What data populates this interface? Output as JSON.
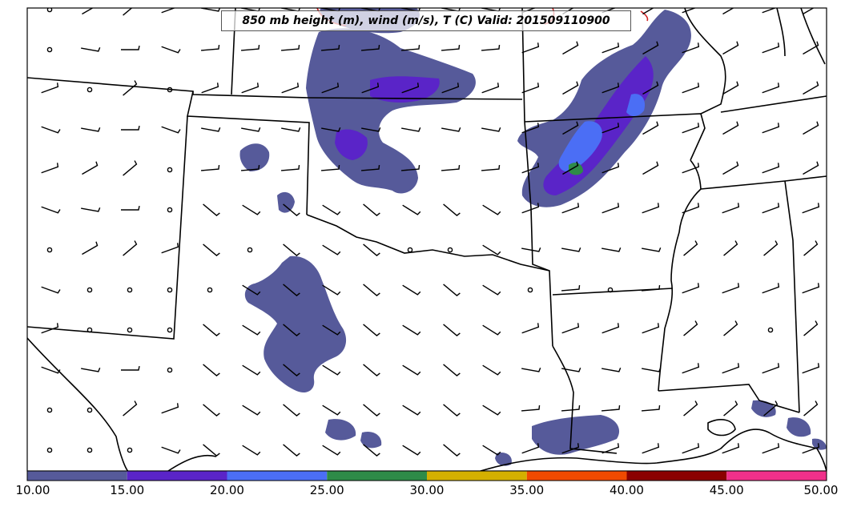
{
  "map": {
    "title": "850 mb height (m), wind (m/s), T (C) Valid: 201509110900"
  },
  "colorbar": {
    "segments": [
      {
        "from": 10,
        "to": 15,
        "color": "#565a9a"
      },
      {
        "from": 15,
        "to": 20,
        "color": "#5a24c8"
      },
      {
        "from": 20,
        "to": 25,
        "color": "#4b6ef5"
      },
      {
        "from": 25,
        "to": 30,
        "color": "#2e8b48"
      },
      {
        "from": 30,
        "to": 35,
        "color": "#d4b000"
      },
      {
        "from": 35,
        "to": 40,
        "color": "#f04a00"
      },
      {
        "from": 40,
        "to": 45,
        "color": "#8b0000"
      },
      {
        "from": 45,
        "to": 50,
        "color": "#f0308a"
      }
    ],
    "tick_labels": [
      "10.00",
      "15.00",
      "20.00",
      "25.00",
      "30.00",
      "35.00",
      "40.00",
      "45.00",
      "50.00"
    ]
  },
  "colors": {
    "boundary": "#000000",
    "shade_10_15": "#565a9a",
    "shade_15_20": "#5a24c8",
    "shade_20_25": "#4b6ef5",
    "shade_25_30": "#2e8b48",
    "contour_red": "#d02020"
  }
}
